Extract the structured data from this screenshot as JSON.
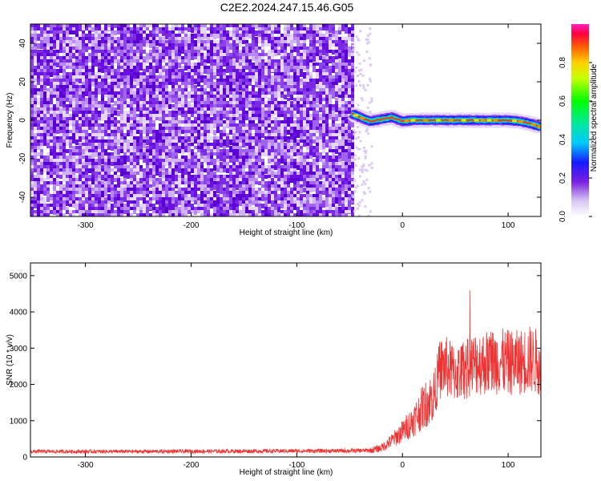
{
  "title": "C2E2.2024.247.15.46.G05",
  "chart_data": [
    {
      "type": "heatmap",
      "xlabel": "Height of straight line (km)",
      "ylabel": "Frequency (Hz)",
      "xlim": [
        -352,
        131
      ],
      "ylim": [
        -50,
        50
      ],
      "xticks": [
        -300,
        -200,
        -100,
        0,
        100
      ],
      "yticks": [
        -40,
        -20,
        0,
        20,
        40
      ],
      "colorbar": {
        "label": "Normalized spectral amplitude",
        "range": [
          0.0,
          1.0
        ],
        "ticks": [
          0.0,
          0.2,
          0.4,
          0.6,
          0.8
        ]
      },
      "noise_region_x": [
        -352,
        -48
      ],
      "signal_trace": {
        "x": [
          -48,
          -40,
          -30,
          -20,
          -10,
          0,
          10,
          20,
          30,
          40,
          50,
          60,
          70,
          80,
          90,
          100,
          110,
          120,
          131
        ],
        "y": [
          3.5,
          1.5,
          -0.5,
          0.5,
          1.5,
          -0.5,
          0.0,
          0.0,
          0.0,
          0.0,
          0.0,
          0.0,
          0.0,
          0.0,
          0.0,
          0.0,
          -0.5,
          -1.5,
          -3.5
        ]
      },
      "colors": {
        "noise_dark": "#6a0ad8",
        "noise_light": "#c9a8f2"
      }
    },
    {
      "type": "line",
      "xlabel": "Height of straight line (km)",
      "ylabel": "SNR (10 * v/v)",
      "xlim": [
        -352,
        131
      ],
      "ylim": [
        0,
        5350
      ],
      "xticks": [
        -300,
        -200,
        -100,
        0,
        100
      ],
      "yticks": [
        0,
        1000,
        2000,
        3000,
        4000,
        5000
      ],
      "series": [
        {
          "x": [
            -352,
            -300,
            -250,
            -200,
            -150,
            -100,
            -50,
            -30,
            -20,
            -10,
            0,
            10,
            20,
            30,
            35,
            40,
            50,
            60,
            70,
            80,
            90,
            100,
            110,
            120,
            131
          ],
          "values": [
            150,
            150,
            150,
            155,
            160,
            165,
            170,
            180,
            250,
            450,
            700,
            1000,
            1400,
            1700,
            2400,
            2500,
            2300,
            2400,
            2600,
            2600,
            2650,
            2600,
            2600,
            2700,
            2600
          ],
          "color": "#ee3333"
        }
      ]
    }
  ]
}
